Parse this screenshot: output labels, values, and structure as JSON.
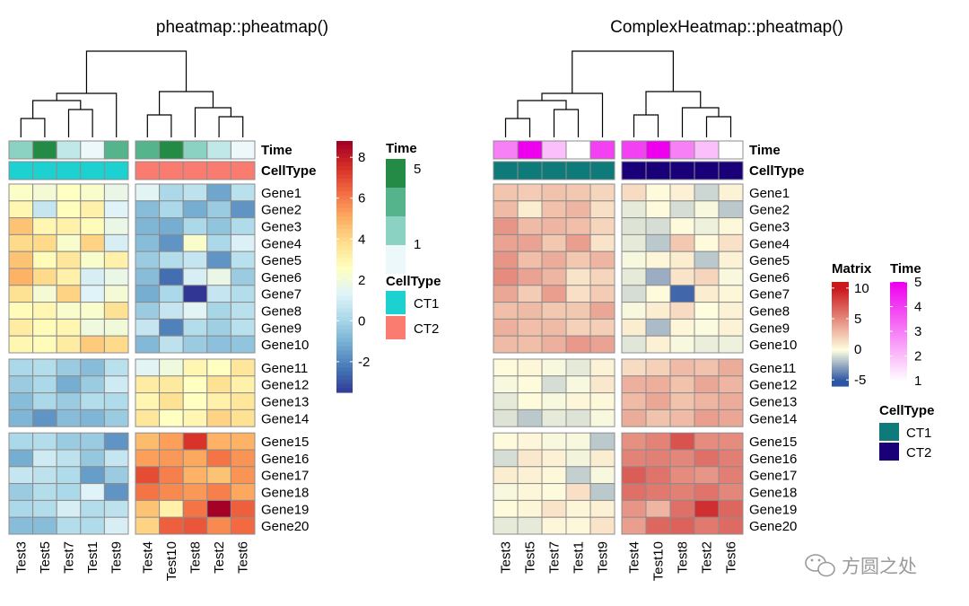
{
  "colors": {
    "matrix_scale": [
      "#313695",
      "#4575B4",
      "#74ADD1",
      "#ABD9E9",
      "#E0F3F8",
      "#FFFFBF",
      "#FEE090",
      "#FDAE61",
      "#F46D43",
      "#D73027",
      "#A50026"
    ],
    "matrix_scale_complex": [
      "#2C55A4",
      "#FFFFE0",
      "#CB181D"
    ],
    "time_scale_left": [
      "#EDF8FB",
      "#B2E2E2",
      "#66C2A4",
      "#238B45"
    ],
    "time_scale_right": [
      "#FFFFFF",
      "#EE00EE"
    ],
    "celltype_left": {
      "CT1": "#1ED1D1",
      "CT2": "#FA7B70"
    },
    "celltype_right": {
      "CT1": "#0E7B7A",
      "CT2": "#1A0078"
    },
    "cell_border": "#8C8C8C"
  },
  "watermark": "方圆之处",
  "chart_data": [
    {
      "type": "heatmap",
      "title": "pheatmap::pheatmap()",
      "columns": [
        "Test3",
        "Test5",
        "Test7",
        "Test1",
        "Test9",
        "Test4",
        "Test10",
        "Test8",
        "Test2",
        "Test6"
      ],
      "column_groups": [
        [
          "Test3",
          "Test5",
          "Test7",
          "Test1",
          "Test9"
        ],
        [
          "Test4",
          "Test10",
          "Test8",
          "Test2",
          "Test6"
        ]
      ],
      "rows": [
        "Gene1",
        "Gene2",
        "Gene3",
        "Gene4",
        "Gene5",
        "Gene6",
        "Gene7",
        "Gene8",
        "Gene9",
        "Gene10",
        "Gene11",
        "Gene12",
        "Gene13",
        "Gene14",
        "Gene15",
        "Gene16",
        "Gene17",
        "Gene18",
        "Gene19",
        "Gene20"
      ],
      "row_groups": [
        [
          0,
          9
        ],
        [
          10,
          13
        ],
        [
          14,
          19
        ]
      ],
      "values": [
        [
          2.5,
          2.2,
          2.6,
          2.4,
          1.8,
          1.5,
          0.2,
          0.6,
          -1.2,
          0.5
        ],
        [
          3.0,
          0.8,
          2.7,
          3.2,
          1.4,
          -0.6,
          0.2,
          -1.0,
          -0.2,
          -1.6
        ],
        [
          4.6,
          3.0,
          3.2,
          2.8,
          1.8,
          -0.8,
          -1.0,
          0.2,
          -0.4,
          0.3
        ],
        [
          4.0,
          4.0,
          2.4,
          4.2,
          1.2,
          -0.6,
          -1.6,
          2.4,
          0.2,
          1.3
        ],
        [
          4.6,
          2.8,
          3.6,
          2.4,
          3.2,
          -0.2,
          0.4,
          0.8,
          -1.6,
          0.5
        ],
        [
          5.0,
          4.0,
          3.2,
          1.2,
          1.8,
          -0.6,
          -2.4,
          1.2,
          1.8,
          -0.2
        ],
        [
          3.8,
          2.2,
          4.2,
          1.4,
          2.2,
          -1.0,
          0.2,
          -4.5,
          0.8,
          0.4
        ],
        [
          2.8,
          3.0,
          2.4,
          2.4,
          3.8,
          -0.2,
          0.8,
          1.5,
          0.1,
          0.5
        ],
        [
          3.4,
          2.8,
          3.0,
          2.0,
          2.1,
          0.8,
          -2.0,
          0.4,
          -0.1,
          0.5
        ],
        [
          3.0,
          2.8,
          3.4,
          4.4,
          4.0,
          -0.7,
          0.6,
          -0.2,
          -0.5,
          -0.4
        ],
        [
          0.2,
          0.4,
          -0.2,
          -0.6,
          0.5,
          1.5,
          2.0,
          3.0,
          2.6,
          3.6
        ],
        [
          -0.2,
          0.2,
          -1.0,
          -0.2,
          1.0,
          3.4,
          3.5,
          2.6,
          3.8,
          3.2
        ],
        [
          -0.6,
          0.2,
          -0.2,
          0.4,
          0.3,
          3.0,
          3.8,
          2.6,
          3.2,
          3.6
        ],
        [
          -0.8,
          -1.6,
          -0.6,
          -0.8,
          -0.2,
          3.6,
          2.6,
          3.0,
          4.2,
          3.8
        ],
        [
          0.2,
          0.4,
          -0.2,
          -0.2,
          -1.6,
          4.8,
          5.4,
          7.5,
          5.0,
          5.0
        ],
        [
          -1.0,
          1.0,
          0.6,
          -0.3,
          0.8,
          5.4,
          5.5,
          5.2,
          6.2,
          5.6
        ],
        [
          0.8,
          0.6,
          0.3,
          -1.4,
          -0.2,
          7.0,
          6.0,
          5.0,
          4.6,
          5.6
        ],
        [
          -0.2,
          0.4,
          0.2,
          1.4,
          -1.6,
          6.2,
          5.8,
          5.5,
          6.0,
          5.2
        ],
        [
          0.2,
          0.4,
          1.2,
          0.4,
          0.6,
          4.6,
          3.2,
          6.2,
          9.0,
          6.6
        ],
        [
          -0.6,
          -0.6,
          0.4,
          0.3,
          1.2,
          4.2,
          6.6,
          6.8,
          5.8,
          6.4
        ]
      ],
      "annotations": {
        "Time": [
          3,
          5,
          2,
          1,
          4,
          4,
          5,
          3,
          2,
          1
        ],
        "CellType": [
          "CT1",
          "CT1",
          "CT1",
          "CT1",
          "CT1",
          "CT2",
          "CT2",
          "CT2",
          "CT2",
          "CT2"
        ]
      },
      "annotation_labels": [
        "Time",
        "CellType"
      ],
      "legends": {
        "matrix": {
          "ticks": [
            8,
            6,
            4,
            2,
            0,
            -2
          ],
          "ylim": [
            -3.5,
            8.8
          ]
        },
        "time": {
          "title": "Time",
          "ticks": [
            "5",
            "1"
          ]
        },
        "celltype": {
          "title": "CellType",
          "entries": [
            "CT1",
            "CT2"
          ]
        }
      }
    },
    {
      "type": "heatmap",
      "title": "ComplexHeatmap::pheatmap()",
      "columns": [
        "Test3",
        "Test5",
        "Test7",
        "Test1",
        "Test9",
        "Test4",
        "Test10",
        "Test8",
        "Test2",
        "Test6"
      ],
      "column_groups": [
        [
          "Test3",
          "Test5",
          "Test7",
          "Test1",
          "Test9"
        ],
        [
          "Test4",
          "Test10",
          "Test8",
          "Test2",
          "Test6"
        ]
      ],
      "rows": [
        "Gene1",
        "Gene2",
        "Gene3",
        "Gene4",
        "Gene5",
        "Gene6",
        "Gene7",
        "Gene8",
        "Gene9",
        "Gene10",
        "Gene11",
        "Gene12",
        "Gene13",
        "Gene14",
        "Gene15",
        "Gene16",
        "Gene17",
        "Gene18",
        "Gene19",
        "Gene20"
      ],
      "row_groups": [
        [
          0,
          9
        ],
        [
          10,
          13
        ],
        [
          14,
          19
        ]
      ],
      "annotations": {
        "Time": [
          3,
          5,
          2,
          1,
          4,
          4,
          5,
          3,
          2,
          1
        ],
        "CellType": [
          "CT1",
          "CT1",
          "CT1",
          "CT1",
          "CT1",
          "CT2",
          "CT2",
          "CT2",
          "CT2",
          "CT2"
        ]
      },
      "annotation_labels": [
        "Time",
        "CellType"
      ],
      "legends": {
        "matrix": {
          "title": "Matrix",
          "ticks": [
            10,
            5,
            0,
            -5
          ],
          "ylim": [
            -6,
            11
          ]
        },
        "time": {
          "title": "Time",
          "ticks": [
            5,
            4,
            3,
            2,
            1
          ]
        },
        "celltype": {
          "title": "CellType",
          "entries": [
            "CT1",
            "CT2"
          ]
        }
      }
    }
  ]
}
